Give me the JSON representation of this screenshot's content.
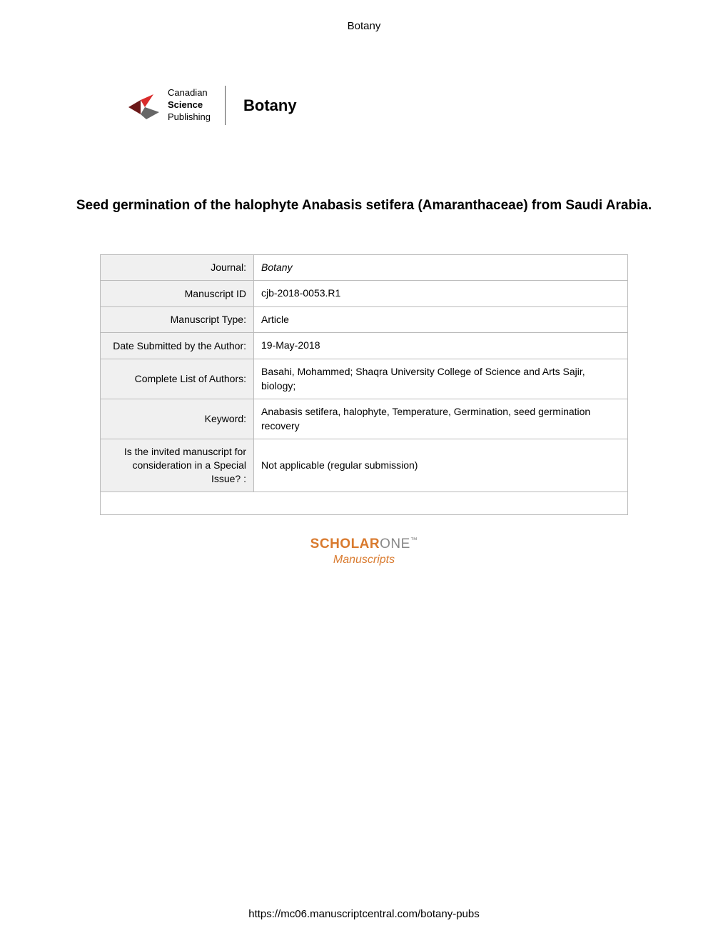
{
  "header": {
    "title": "Botany"
  },
  "logo": {
    "publisher_line1": "Canadian",
    "publisher_line2": "Science",
    "publisher_line3": "Publishing",
    "journal": "Botany",
    "icon_colors": {
      "dark_red": "#6b1818",
      "bright_red": "#d92b2b",
      "gray": "#666666"
    }
  },
  "title": "Seed germination of the halophyte  Anabasis setifera (Amaranthaceae) from Saudi Arabia.",
  "metadata": {
    "columns": [
      "label",
      "value"
    ],
    "rows": [
      {
        "label": "Journal:",
        "value": "Botany",
        "italic": true
      },
      {
        "label": "Manuscript ID",
        "value": "cjb-2018-0053.R1"
      },
      {
        "label": "Manuscript Type:",
        "value": "Article"
      },
      {
        "label": "Date Submitted by the Author:",
        "value": "19-May-2018"
      },
      {
        "label": "Complete List of Authors:",
        "value": "Basahi, Mohammed; Shaqra University College of Science and Arts Sajir, biology;"
      },
      {
        "label": "Keyword:",
        "value": "Anabasis setifera, halophyte, Temperature, Germination, seed germination recovery"
      },
      {
        "label": "Is the invited manuscript for consideration in a Special Issue? :",
        "value": "Not applicable (regular submission)"
      }
    ]
  },
  "scholarone": {
    "brand_bold": "SCHOLAR",
    "brand_light": "ONE",
    "tm": "™",
    "subtitle": "Manuscripts"
  },
  "footer": {
    "url": "https://mc06.manuscriptcentral.com/botany-pubs"
  },
  "styling": {
    "background_color": "#ffffff",
    "text_color": "#000000",
    "table_border_color": "#bbbbbb",
    "table_label_bg": "#f0f0f0",
    "scholarone_orange": "#d97a2e",
    "scholarone_gray": "#888888",
    "title_fontsize": 19,
    "table_fontsize": 14,
    "header_fontsize": 15
  }
}
